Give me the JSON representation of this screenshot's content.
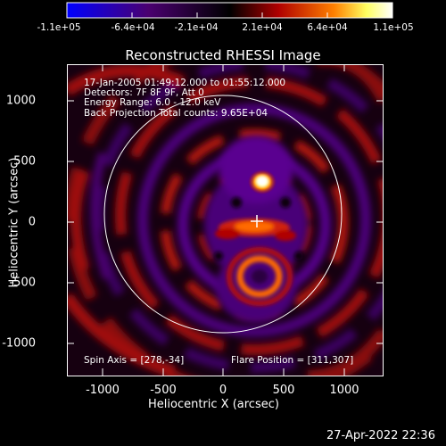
{
  "colorbar": {
    "ticks": [
      "-1.1e+05",
      "-6.4e+04",
      "-2.1e+04",
      "2.1e+04",
      "6.4e+04",
      "1.1e+05"
    ],
    "colors": [
      "#0000ff",
      "#4a0070",
      "#000000",
      "#b00000",
      "#ff8000",
      "#ffff60",
      "#ffffff"
    ]
  },
  "plot": {
    "title": "Reconstructed RHESSI Image",
    "info_lines": [
      "17-Jan-2005 01:49:12.000 to 01:55:12.000",
      "Detectors: 7F 8F 9F, Att 0",
      "Energy Range: 6.0 - 12.0 keV",
      "Back Projection    Total counts: 9.65E+04"
    ],
    "spin_axis": "Spin Axis = [278,-34]",
    "flare_position": "Flare Position = [311,307]",
    "x_ticks": [
      "-1000",
      "-500",
      "0",
      "500",
      "1000"
    ],
    "y_ticks": [
      "1000",
      "500",
      "0",
      "-500",
      "-1000"
    ],
    "xlabel": "Heliocentric X (arcsec)",
    "ylabel": "Heliocentric Y (arcsec)"
  },
  "footer": {
    "date": "27-Apr-2022 22:36"
  }
}
